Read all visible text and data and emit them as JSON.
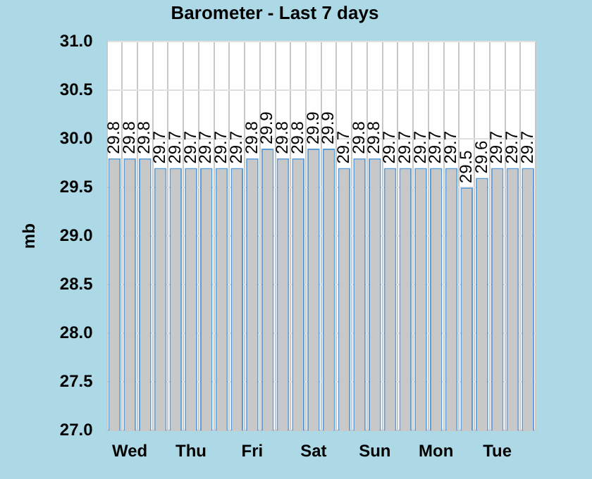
{
  "chart_data": {
    "type": "bar",
    "title": "Barometer - Last 7 days",
    "ylabel": "mb",
    "categories": [
      null,
      "Wed",
      null,
      null,
      null,
      "Thu",
      null,
      null,
      null,
      "Fri",
      null,
      null,
      null,
      "Sat",
      null,
      null,
      null,
      "Sun",
      null,
      null,
      null,
      "Mon",
      null,
      null,
      null,
      "Tue",
      null,
      null
    ],
    "values": [
      29.8,
      29.8,
      29.8,
      29.7,
      29.7,
      29.7,
      29.7,
      29.7,
      29.7,
      29.8,
      29.9,
      29.8,
      29.8,
      29.9,
      29.9,
      29.7,
      29.8,
      29.8,
      29.7,
      29.7,
      29.7,
      29.7,
      29.7,
      29.5,
      29.6,
      29.7,
      29.7,
      29.7
    ],
    "color": "#c8c8c8",
    "ylim": [
      27.0,
      31.0
    ],
    "yticks": [
      {
        "value": 27,
        "label": "27.0"
      },
      {
        "value": 27.5,
        "label": "27.5"
      },
      {
        "value": 28,
        "label": "28.0"
      },
      {
        "value": 28.5,
        "label": "28.5"
      },
      {
        "value": 29,
        "label": "29.0"
      },
      {
        "value": 29.5,
        "label": "29.5"
      },
      {
        "value": 30,
        "label": "30.0"
      },
      {
        "value": 30.5,
        "label": "30.5"
      },
      {
        "value": 31,
        "label": "31.0"
      }
    ],
    "data_labels": true,
    "grid": true,
    "legend": false
  }
}
